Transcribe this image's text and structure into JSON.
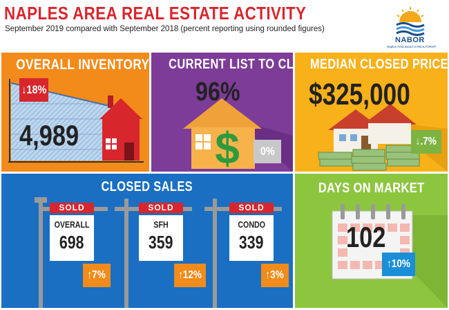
{
  "header": {
    "title": "NAPLES AREA REAL ESTATE ACTIVITY",
    "subtitle": "September 2019 compared with September 2018 (percent reporting using rounded figures)"
  },
  "logo": {
    "name": "NABOR",
    "tagline": "Naples Area Board of REALTORS®",
    "icon": "sun-over-waves-logo"
  },
  "colors": {
    "title_red": "#d8262d",
    "inventory_orange": "#f28b1a",
    "list_purple": "#7d3c98",
    "price_gold": "#f9b11a",
    "closed_blue": "#1a6fc2",
    "dom_green": "#8cc63f",
    "badge_orange": "#f28b1a",
    "badge_red": "#d8262d",
    "badge_green": "#7cb342",
    "badge_blue": "#1a8fd8"
  },
  "inventory": {
    "title": "OVERALL INVENTORY",
    "value": "4,989",
    "change": "↓18%",
    "icon": "house-on-chart-icon"
  },
  "list_to_closed": {
    "title": "CURRENT LIST TO CLOSED",
    "value": "96%",
    "change": "0%",
    "icon": "dollar-house-icon"
  },
  "median_price": {
    "title": "MEDIAN CLOSED PRICE",
    "value": "$325,000",
    "change": "↓.7%",
    "icon": "house-on-money-icon"
  },
  "closed_sales": {
    "title": "CLOSED SALES",
    "sold_label": "SOLD",
    "signs": [
      {
        "label": "OVERALL",
        "value": "698",
        "change": "↑7%"
      },
      {
        "label": "SFH",
        "value": "359",
        "change": "↑12%"
      },
      {
        "label": "CONDO",
        "value": "339",
        "change": "↑3%"
      }
    ]
  },
  "days_on_market": {
    "title": "DAYS ON MARKET",
    "value": "102",
    "change": "↑10%",
    "icon": "calendar-icon"
  }
}
